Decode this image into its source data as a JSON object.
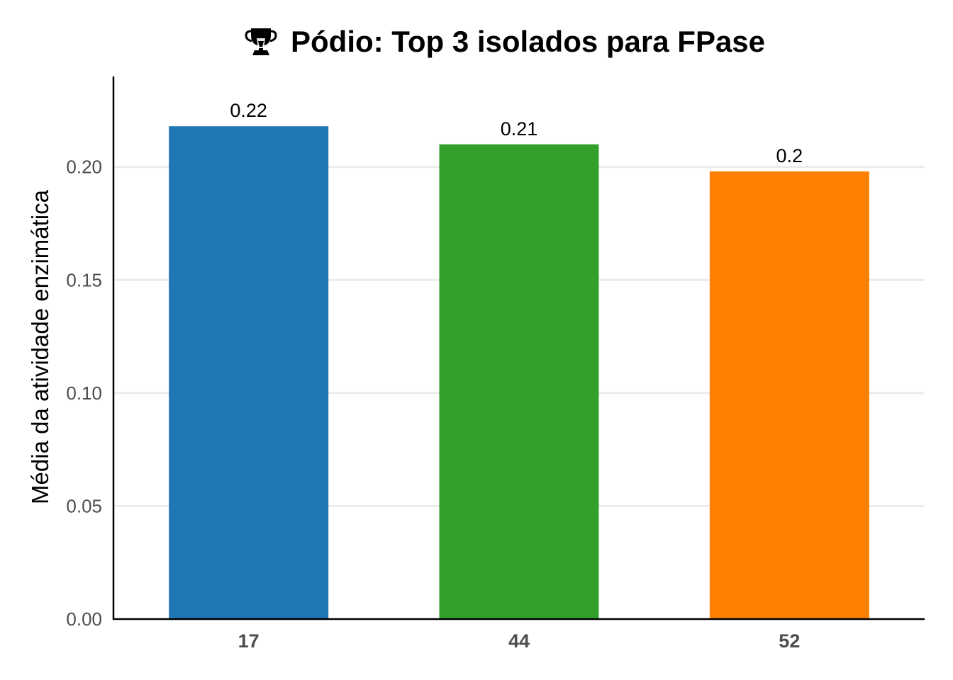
{
  "chart_data": {
    "type": "bar",
    "title": "Pódio: Top 3 isolados para FPase",
    "title_icon": "trophy-icon",
    "xlabel": "",
    "ylabel": "Média da atividade enzimática",
    "categories": [
      "17",
      "44",
      "52"
    ],
    "values": [
      0.218,
      0.21,
      0.198
    ],
    "data_labels": [
      "0.22",
      "0.21",
      "0.2"
    ],
    "colors": [
      "#1f77b4",
      "#33a02c",
      "#ff7f00"
    ],
    "ylim": [
      0,
      0.24
    ],
    "yticks": [
      0,
      0.05,
      0.1,
      0.15,
      0.2
    ],
    "ytick_labels": [
      "0.00",
      "0.05",
      "0.10",
      "0.15",
      "0.20"
    ],
    "grid": "horizontal",
    "legend": "none"
  }
}
